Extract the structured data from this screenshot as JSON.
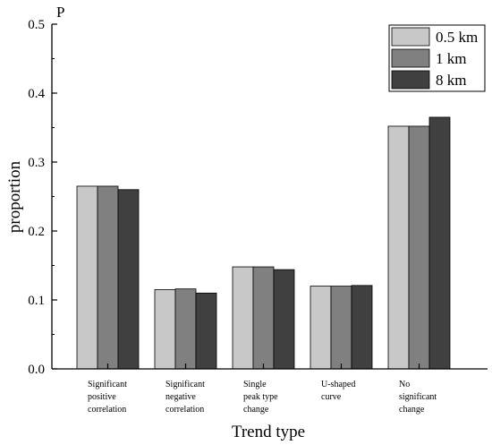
{
  "chart_data": {
    "type": "bar",
    "categories": [
      [
        "Significant",
        "positive",
        "correlation"
      ],
      [
        "Significant",
        "negative",
        "correlation"
      ],
      [
        "Single",
        "peak type",
        "change"
      ],
      [
        "U-shaped",
        "curve"
      ],
      [
        "No",
        "significant",
        "change"
      ]
    ],
    "series": [
      {
        "name": "0.5 km",
        "color": "#c8c8c8",
        "values": [
          0.265,
          0.115,
          0.148,
          0.12,
          0.352
        ]
      },
      {
        "name": "1 km",
        "color": "#808080",
        "values": [
          0.265,
          0.116,
          0.148,
          0.12,
          0.352
        ]
      },
      {
        "name": "8 km",
        "color": "#404040",
        "values": [
          0.26,
          0.11,
          0.144,
          0.121,
          0.365
        ]
      }
    ],
    "xlabel": "Trend type",
    "ylabel": "proportion",
    "y_unit_label": "P",
    "ylim": [
      0,
      0.5
    ],
    "yticks": [
      "0.0",
      "0.1",
      "0.2",
      "0.3",
      "0.4",
      "0.5"
    ],
    "legend_position": "top-right",
    "grid": false
  }
}
